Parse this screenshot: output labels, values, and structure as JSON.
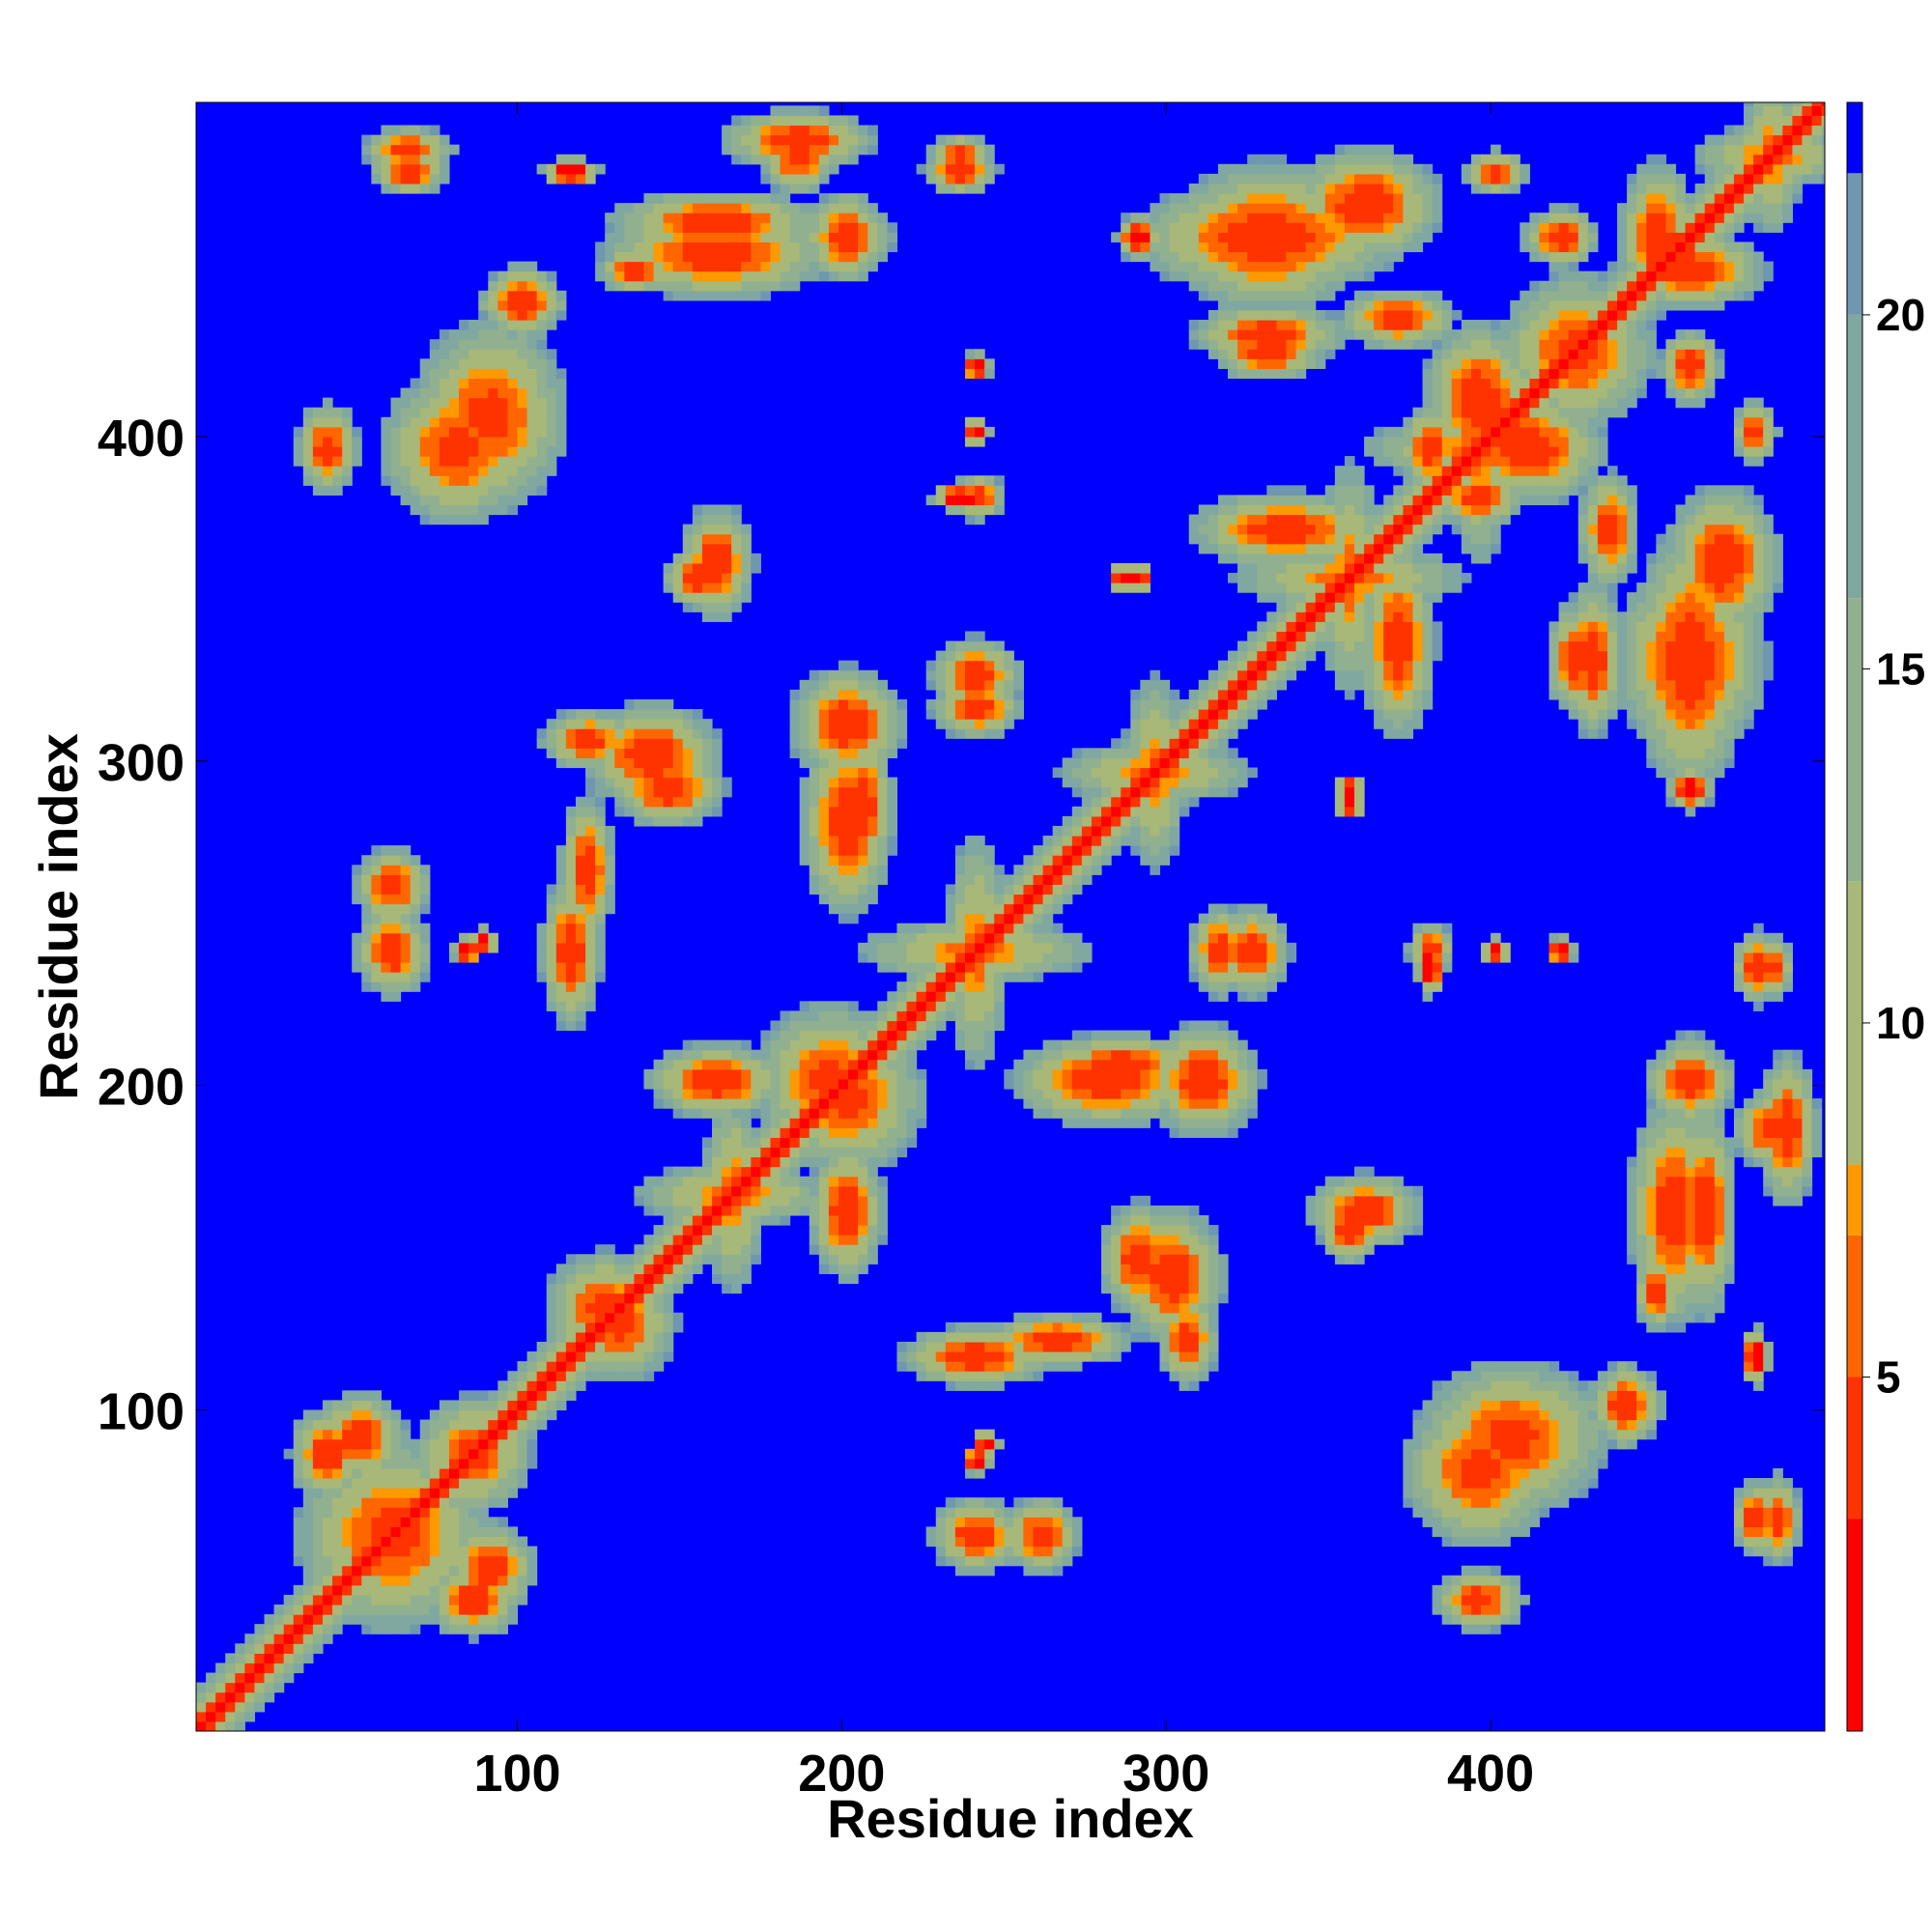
{
  "chart_data": {
    "type": "heatmap",
    "title": "",
    "xlabel": "Residue index",
    "ylabel": "Residue index",
    "xlim": [
      1,
      503
    ],
    "ylim": [
      1,
      503
    ],
    "x_ticks": [
      100,
      200,
      300,
      400
    ],
    "y_ticks": [
      100,
      200,
      300,
      400
    ],
    "background_value": 22,
    "colorbar": {
      "range": [
        0,
        23
      ],
      "ticks": [
        5,
        10,
        15,
        20
      ],
      "color_stops": [
        {
          "value": 0,
          "color": "#ff0000"
        },
        {
          "value": 3,
          "color": "#ff3300"
        },
        {
          "value": 5,
          "color": "#ff6600"
        },
        {
          "value": 7,
          "color": "#ff9900"
        },
        {
          "value": 8,
          "color": "#a8b878"
        },
        {
          "value": 12,
          "color": "#90b090"
        },
        {
          "value": 16,
          "color": "#80a8a0"
        },
        {
          "value": 20,
          "color": "#6f97b0"
        },
        {
          "value": 22,
          "color": "#0000ff"
        }
      ]
    },
    "diagonal": {
      "start": 1,
      "end": 503,
      "value": 1
    },
    "contact_regions": [
      {
        "x": 60,
        "y": 60,
        "sx": 25,
        "sy": 25,
        "r": 0,
        "core": 4
      },
      {
        "x": 85,
        "y": 85,
        "sx": 15,
        "sy": 15,
        "r": 0,
        "core": 4
      },
      {
        "x": 130,
        "y": 125,
        "sx": 15,
        "sy": 15,
        "r": 0,
        "core": 4
      },
      {
        "x": 165,
        "y": 165,
        "sx": 25,
        "sy": 8,
        "r": 0.7,
        "core": 6
      },
      {
        "x": 195,
        "y": 200,
        "sx": 20,
        "sy": 20,
        "r": 0,
        "core": 4
      },
      {
        "x": 240,
        "y": 240,
        "sx": 30,
        "sy": 8,
        "r": -0.8,
        "core": 6
      },
      {
        "x": 295,
        "y": 295,
        "sx": 25,
        "sy": 8,
        "r": -0.8,
        "core": 6
      },
      {
        "x": 355,
        "y": 355,
        "sx": 30,
        "sy": 8,
        "r": -0.8,
        "core": 6
      },
      {
        "x": 395,
        "y": 395,
        "sx": 30,
        "sy": 8,
        "r": -0.8,
        "core": 6
      },
      {
        "x": 425,
        "y": 425,
        "sx": 20,
        "sy": 20,
        "r": 0,
        "core": 4
      },
      {
        "x": 485,
        "y": 485,
        "sx": 20,
        "sy": 8,
        "r": -0.8,
        "core": 6
      },
      {
        "x": 60,
        "y": 238,
        "sx": 8,
        "sy": 9,
        "r": 0,
        "core": 3
      },
      {
        "x": 83,
        "y": 240,
        "sx": 4,
        "sy": 4,
        "r": 0,
        "core": 0
      },
      {
        "x": 115,
        "y": 240,
        "sx": 6,
        "sy": 16,
        "r": 0,
        "core": 3
      },
      {
        "x": 120,
        "y": 305,
        "sx": 12,
        "sy": 8,
        "r": 0,
        "core": 3
      },
      {
        "x": 145,
        "y": 290,
        "sx": 15,
        "sy": 10,
        "r": -0.4,
        "core": 3
      },
      {
        "x": 155,
        "y": 355,
        "sx": 10,
        "sy": 8,
        "r": 0,
        "core": 3
      },
      {
        "x": 200,
        "y": 280,
        "sx": 12,
        "sy": 25,
        "r": 0,
        "core": 3
      },
      {
        "x": 240,
        "y": 315,
        "sx": 12,
        "sy": 8,
        "r": 0,
        "core": 3
      },
      {
        "x": 200,
        "y": 160,
        "sx": 10,
        "sy": 18,
        "r": 0,
        "core": 3
      },
      {
        "x": 240,
        "y": 115,
        "sx": 20,
        "sy": 8,
        "r": 0,
        "core": 3
      },
      {
        "x": 265,
        "y": 120,
        "sx": 20,
        "sy": 7,
        "r": 0,
        "core": 3
      },
      {
        "x": 240,
        "y": 60,
        "sx": 12,
        "sy": 10,
        "r": 0,
        "core": 3
      },
      {
        "x": 243,
        "y": 88,
        "sx": 4,
        "sy": 4,
        "r": 0,
        "core": 0
      },
      {
        "x": 300,
        "y": 140,
        "sx": 14,
        "sy": 18,
        "r": -0.4,
        "core": 3
      },
      {
        "x": 285,
        "y": 205,
        "sx": 20,
        "sy": 8,
        "r": 0,
        "core": 3
      },
      {
        "x": 310,
        "y": 200,
        "sx": 15,
        "sy": 15,
        "r": -0.4,
        "core": 3
      },
      {
        "x": 360,
        "y": 160,
        "sx": 15,
        "sy": 10,
        "r": 0,
        "core": 3
      },
      {
        "x": 405,
        "y": 90,
        "sx": 25,
        "sy": 20,
        "r": 0,
        "core": 4
      },
      {
        "x": 395,
        "y": 40,
        "sx": 12,
        "sy": 8,
        "r": 0,
        "core": 3
      },
      {
        "x": 440,
        "y": 100,
        "sx": 10,
        "sy": 10,
        "r": 0,
        "core": 3
      },
      {
        "x": 455,
        "y": 160,
        "sx": 12,
        "sy": 30,
        "r": 0.5,
        "core": 3
      },
      {
        "x": 460,
        "y": 200,
        "sx": 12,
        "sy": 10,
        "r": 0,
        "core": 3
      },
      {
        "x": 485,
        "y": 185,
        "sx": 10,
        "sy": 10,
        "r": 0,
        "core": 3
      },
      {
        "x": 487,
        "y": 65,
        "sx": 6,
        "sy": 12,
        "r": 0,
        "core": 3
      },
      {
        "x": 485,
        "y": 235,
        "sx": 6,
        "sy": 8,
        "r": 0,
        "core": 3
      },
      {
        "x": 460,
        "y": 330,
        "sx": 15,
        "sy": 35,
        "r": 0.4,
        "core": 3
      },
      {
        "x": 430,
        "y": 330,
        "sx": 8,
        "sy": 20,
        "r": 0,
        "core": 3
      },
      {
        "x": 410,
        "y": 395,
        "sx": 20,
        "sy": 15,
        "r": 0,
        "core": 3
      },
      {
        "x": 335,
        "y": 370,
        "sx": 25,
        "sy": 10,
        "r": 0,
        "core": 3
      },
      {
        "x": 330,
        "y": 460,
        "sx": 25,
        "sy": 20,
        "r": 0.3,
        "core": 3
      },
      {
        "x": 360,
        "y": 470,
        "sx": 20,
        "sy": 15,
        "r": -0.4,
        "core": 3
      },
      {
        "x": 330,
        "y": 425,
        "sx": 15,
        "sy": 8,
        "r": 0,
        "core": 3
      },
      {
        "x": 370,
        "y": 435,
        "sx": 15,
        "sy": 8,
        "r": 0,
        "core": 3
      },
      {
        "x": 185,
        "y": 490,
        "sx": 20,
        "sy": 8,
        "r": -0.6,
        "core": 3
      },
      {
        "x": 160,
        "y": 465,
        "sx": 28,
        "sy": 8,
        "r": 0.8,
        "core": 3
      },
      {
        "x": 200,
        "y": 460,
        "sx": 12,
        "sy": 10,
        "r": 0,
        "core": 3
      },
      {
        "x": 235,
        "y": 480,
        "sx": 10,
        "sy": 6,
        "r": 0,
        "core": 3
      },
      {
        "x": 80,
        "y": 395,
        "sx": 20,
        "sy": 20,
        "r": 0,
        "core": 4
      },
      {
        "x": 40,
        "y": 395,
        "sx": 6,
        "sy": 6,
        "r": 0,
        "core": 3
      },
      {
        "x": 100,
        "y": 440,
        "sx": 12,
        "sy": 6,
        "r": 0.5,
        "core": 3
      },
      {
        "x": 65,
        "y": 480,
        "sx": 10,
        "sy": 6,
        "r": 0,
        "core": 3
      },
      {
        "x": 115,
        "y": 480,
        "sx": 8,
        "sy": 4,
        "r": 0,
        "core": 0
      },
      {
        "x": 135,
        "y": 450,
        "sx": 10,
        "sy": 6,
        "r": 0,
        "core": 3
      },
      {
        "x": 400,
        "y": 480,
        "sx": 8,
        "sy": 6,
        "r": 0,
        "core": 3
      },
      {
        "x": 420,
        "y": 460,
        "sx": 10,
        "sy": 8,
        "r": 0,
        "core": 3
      },
      {
        "x": 460,
        "y": 450,
        "sx": 20,
        "sy": 10,
        "r": 0,
        "core": 3
      },
      {
        "x": 290,
        "y": 460,
        "sx": 6,
        "sy": 6,
        "r": 0,
        "core": 0
      },
      {
        "x": 240,
        "y": 380,
        "sx": 8,
        "sy": 6,
        "r": 0,
        "core": 3
      },
      {
        "x": 240,
        "y": 400,
        "sx": 4,
        "sy": 4,
        "r": 0,
        "core": 0
      },
      {
        "x": 290,
        "y": 355,
        "sx": 4,
        "sy": 4,
        "r": 0,
        "core": 0
      },
      {
        "x": 355,
        "y": 285,
        "sx": 4,
        "sy": 4,
        "r": 0,
        "core": 0
      },
      {
        "x": 395,
        "y": 380,
        "sx": 12,
        "sy": 8,
        "r": 0,
        "core": 3
      },
      {
        "x": 420,
        "y": 240,
        "sx": 4,
        "sy": 4,
        "r": 0,
        "core": 0
      },
      {
        "x": 380,
        "y": 235,
        "sx": 4,
        "sy": 8,
        "r": 0,
        "core": 0
      },
      {
        "x": 260,
        "y": 60,
        "sx": 10,
        "sy": 10,
        "r": 0,
        "core": 3
      },
      {
        "x": 325,
        "y": 240,
        "sx": 10,
        "sy": 12,
        "r": 0,
        "core": 3
      },
      {
        "x": 90,
        "y": 50,
        "sx": 12,
        "sy": 12,
        "r": 0,
        "core": 3
      },
      {
        "x": 40,
        "y": 85,
        "sx": 10,
        "sy": 12,
        "r": 0,
        "core": 3
      }
    ]
  }
}
